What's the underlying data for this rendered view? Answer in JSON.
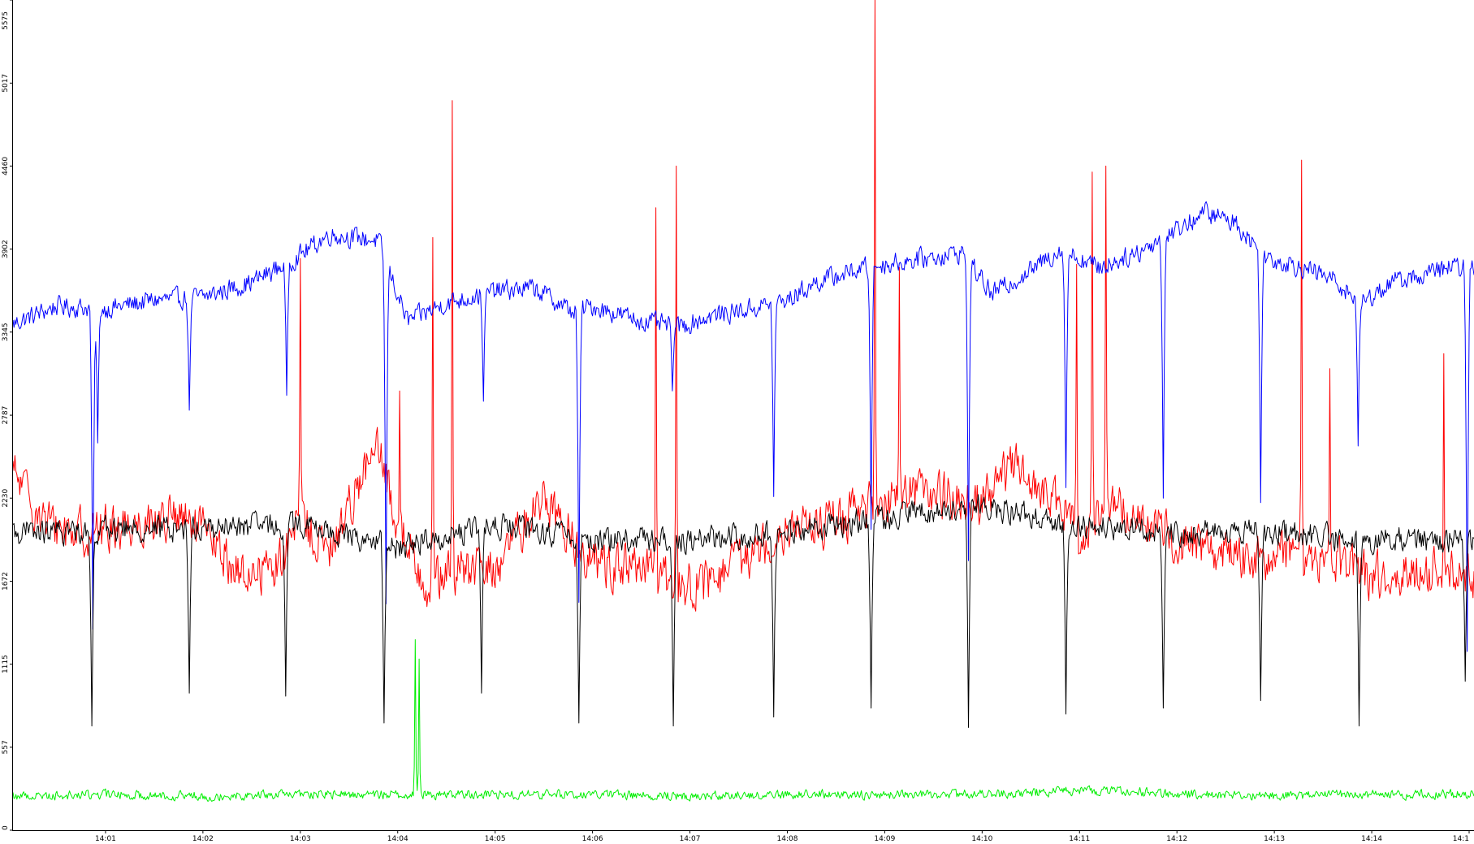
{
  "chart_data": {
    "type": "line",
    "title": "",
    "xlabel": "",
    "ylabel": "",
    "ylim": [
      0,
      5575
    ],
    "y_ticks": [
      "0",
      "557",
      "1115",
      "1672",
      "2230",
      "2787",
      "3345",
      "3902",
      "4460",
      "5017",
      "5575"
    ],
    "x_ticks": [
      "14:01",
      "14:02",
      "14:03",
      "14:04",
      "14:05",
      "14:06",
      "14:07",
      "14:08",
      "14:09",
      "14:10",
      "14:11",
      "14:12",
      "14:13",
      "14:14",
      "14:1"
    ],
    "x_range_minutes": [
      0.05,
      15.05
    ],
    "x_tick_minutes": [
      1,
      2,
      3,
      4,
      5,
      6,
      7,
      8,
      9,
      10,
      11,
      12,
      13,
      14,
      15
    ],
    "grid": false,
    "legend": "none",
    "series": [
      {
        "color": "#0000ff",
        "baseline": [
          [
            0.05,
            3400
          ],
          [
            0.5,
            3520
          ],
          [
            1.0,
            3500
          ],
          [
            1.5,
            3560
          ],
          [
            2.0,
            3580
          ],
          [
            2.5,
            3680
          ],
          [
            2.9,
            3820
          ],
          [
            3.3,
            4000
          ],
          [
            3.8,
            3960
          ],
          [
            4.1,
            3420
          ],
          [
            4.5,
            3540
          ],
          [
            5.0,
            3620
          ],
          [
            5.4,
            3640
          ],
          [
            5.8,
            3480
          ],
          [
            6.0,
            3520
          ],
          [
            6.5,
            3420
          ],
          [
            6.9,
            3380
          ],
          [
            7.2,
            3450
          ],
          [
            7.6,
            3500
          ],
          [
            8.0,
            3560
          ],
          [
            8.3,
            3680
          ],
          [
            8.8,
            3780
          ],
          [
            9.2,
            3820
          ],
          [
            9.8,
            3880
          ],
          [
            10.1,
            3600
          ],
          [
            10.5,
            3760
          ],
          [
            10.8,
            3900
          ],
          [
            11.2,
            3780
          ],
          [
            11.6,
            3880
          ],
          [
            11.9,
            4000
          ],
          [
            12.3,
            4150
          ],
          [
            12.6,
            4080
          ],
          [
            12.9,
            3850
          ],
          [
            13.2,
            3800
          ],
          [
            13.6,
            3700
          ],
          [
            13.9,
            3540
          ],
          [
            14.2,
            3680
          ],
          [
            14.5,
            3720
          ],
          [
            14.8,
            3780
          ],
          [
            15.05,
            3780
          ]
        ],
        "noise": 60,
        "dips": [
          [
            0.87,
            1350
          ],
          [
            0.92,
            2600
          ],
          [
            1.86,
            2820
          ],
          [
            2.86,
            2920
          ],
          [
            3.88,
            1520
          ],
          [
            4.88,
            2880
          ],
          [
            5.86,
            1530
          ],
          [
            6.82,
            2950
          ],
          [
            7.86,
            2240
          ],
          [
            8.86,
            2020
          ],
          [
            9.86,
            1810
          ],
          [
            10.86,
            2300
          ],
          [
            11.86,
            2230
          ],
          [
            12.86,
            2200
          ],
          [
            13.86,
            2580
          ],
          [
            14.98,
            1200
          ]
        ],
        "spikes": []
      },
      {
        "color": "#ff0000",
        "baseline": [
          [
            0.05,
            2400
          ],
          [
            0.4,
            2050
          ],
          [
            0.8,
            2000
          ],
          [
            1.2,
            2050
          ],
          [
            1.7,
            2100
          ],
          [
            2.0,
            2000
          ],
          [
            2.4,
            1700
          ],
          [
            2.8,
            1800
          ],
          [
            3.0,
            2100
          ],
          [
            3.3,
            1850
          ],
          [
            3.6,
            2350
          ],
          [
            3.8,
            2550
          ],
          [
            4.0,
            2050
          ],
          [
            4.3,
            1650
          ],
          [
            4.7,
            1750
          ],
          [
            5.0,
            1750
          ],
          [
            5.3,
            2050
          ],
          [
            5.5,
            2250
          ],
          [
            5.8,
            1950
          ],
          [
            6.0,
            1800
          ],
          [
            6.5,
            1750
          ],
          [
            6.8,
            1650
          ],
          [
            7.2,
            1650
          ],
          [
            7.6,
            1850
          ],
          [
            8.0,
            2050
          ],
          [
            8.4,
            2050
          ],
          [
            8.8,
            2150
          ],
          [
            9.2,
            2300
          ],
          [
            9.6,
            2250
          ],
          [
            10.0,
            2200
          ],
          [
            10.3,
            2450
          ],
          [
            10.6,
            2300
          ],
          [
            11.0,
            2000
          ],
          [
            11.3,
            2200
          ],
          [
            11.6,
            2100
          ],
          [
            12.0,
            1950
          ],
          [
            12.4,
            1900
          ],
          [
            12.8,
            1800
          ],
          [
            13.2,
            1900
          ],
          [
            13.6,
            1800
          ],
          [
            14.0,
            1700
          ],
          [
            14.5,
            1750
          ],
          [
            15.05,
            1700
          ]
        ],
        "noise": 140,
        "dips": [],
        "spikes": [
          [
            3.0,
            3840
          ],
          [
            4.02,
            2950
          ],
          [
            4.36,
            3980
          ],
          [
            4.56,
            4900
          ],
          [
            6.65,
            4180
          ],
          [
            6.86,
            4460
          ],
          [
            8.9,
            5575
          ],
          [
            9.15,
            3780
          ],
          [
            10.97,
            3800
          ],
          [
            11.13,
            4420
          ],
          [
            11.27,
            4460
          ],
          [
            13.28,
            4500
          ],
          [
            13.57,
            3100
          ],
          [
            14.74,
            3200
          ]
        ]
      },
      {
        "color": "#000000",
        "baseline": [
          [
            0.05,
            2000
          ],
          [
            0.5,
            2000
          ],
          [
            1.0,
            2020
          ],
          [
            2.0,
            2030
          ],
          [
            3.0,
            2050
          ],
          [
            4.0,
            1900
          ],
          [
            5.0,
            2050
          ],
          [
            6.0,
            1950
          ],
          [
            7.0,
            1950
          ],
          [
            8.0,
            2000
          ],
          [
            9.0,
            2100
          ],
          [
            10.0,
            2180
          ],
          [
            11.0,
            2050
          ],
          [
            12.0,
            2000
          ],
          [
            13.0,
            2000
          ],
          [
            14.0,
            1950
          ],
          [
            15.05,
            1950
          ]
        ],
        "noise": 75,
        "dips": [
          [
            0.86,
            700
          ],
          [
            1.86,
            920
          ],
          [
            2.85,
            900
          ],
          [
            3.86,
            720
          ],
          [
            4.86,
            920
          ],
          [
            5.86,
            720
          ],
          [
            6.83,
            700
          ],
          [
            7.86,
            760
          ],
          [
            8.86,
            820
          ],
          [
            9.86,
            690
          ],
          [
            10.86,
            780
          ],
          [
            11.86,
            820
          ],
          [
            12.86,
            870
          ],
          [
            13.87,
            700
          ],
          [
            14.96,
            1000
          ]
        ],
        "spikes": []
      },
      {
        "color": "#00ee00",
        "baseline": [
          [
            0.05,
            230
          ],
          [
            1.0,
            240
          ],
          [
            2.0,
            230
          ],
          [
            3.0,
            240
          ],
          [
            4.0,
            240
          ],
          [
            5.0,
            240
          ],
          [
            6.0,
            240
          ],
          [
            7.0,
            230
          ],
          [
            8.0,
            240
          ],
          [
            9.0,
            240
          ],
          [
            10.0,
            240
          ],
          [
            10.8,
            260
          ],
          [
            11.5,
            260
          ],
          [
            12.3,
            240
          ],
          [
            13.0,
            230
          ],
          [
            14.0,
            240
          ],
          [
            15.05,
            240
          ]
        ],
        "noise": 28,
        "dips": [],
        "spikes": [
          [
            4.18,
            1280
          ],
          [
            4.22,
            1150
          ]
        ]
      }
    ]
  }
}
